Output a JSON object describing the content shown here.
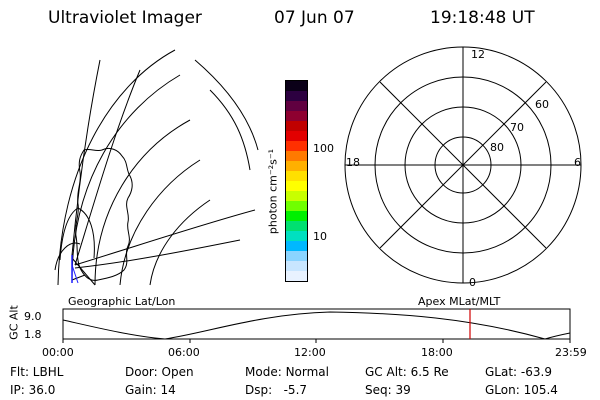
{
  "header": {
    "instrument": "Ultraviolet Imager",
    "date": "07 Jun 07",
    "time": "19:18:48 UT"
  },
  "colorbar": {
    "label": "photon cm⁻²s⁻¹",
    "ticks": [
      {
        "label": "100",
        "value": 100
      },
      {
        "label": "10",
        "value": 10
      }
    ],
    "colors": [
      "#0b0018",
      "#2c0040",
      "#600040",
      "#8e0030",
      "#c00000",
      "#e20000",
      "#ff3000",
      "#ff7a00",
      "#ffb000",
      "#ffe000",
      "#ffff00",
      "#c8ff00",
      "#70ff00",
      "#00f000",
      "#00e070",
      "#00e0c0",
      "#00b8ff",
      "#8ad4ff",
      "#c8e6ff",
      "#e8f2ff"
    ]
  },
  "polar": {
    "mlt_labels": [
      {
        "label": "12",
        "pos": "top"
      },
      {
        "label": "18",
        "pos": "left"
      },
      {
        "label": "6",
        "pos": "right"
      },
      {
        "label": "0",
        "pos": "bottom"
      }
    ],
    "lat_labels": [
      "60",
      "70",
      "80"
    ]
  },
  "plot_labels": {
    "left": "Geographic Lat/Lon",
    "right": "Apex MLat/MLT"
  },
  "altitude": {
    "ylabel": "GC Alt",
    "yticks": [
      "9.0",
      "1.8"
    ],
    "xticks": [
      "00:00",
      "06:00",
      "12:00",
      "18:00",
      "23:59"
    ],
    "marker_color": "#d00000"
  },
  "footer": [
    [
      {
        "k": "Flt:",
        "v": "LBHL"
      },
      {
        "k": "Door:",
        "v": "Open"
      },
      {
        "k": "Mode:",
        "v": "Normal"
      },
      {
        "k": "GC Alt:",
        "v": "6.5 Re"
      },
      {
        "k": "GLat:",
        "v": "-63.9"
      }
    ],
    [
      {
        "k": "IP:",
        "v": "36.0"
      },
      {
        "k": "Gain:",
        "v": "14"
      },
      {
        "k": "Dsp:",
        "v": "  -5.7"
      },
      {
        "k": "Seq:",
        "v": "39"
      },
      {
        "k": "GLon:",
        "v": "105.4"
      }
    ]
  ]
}
